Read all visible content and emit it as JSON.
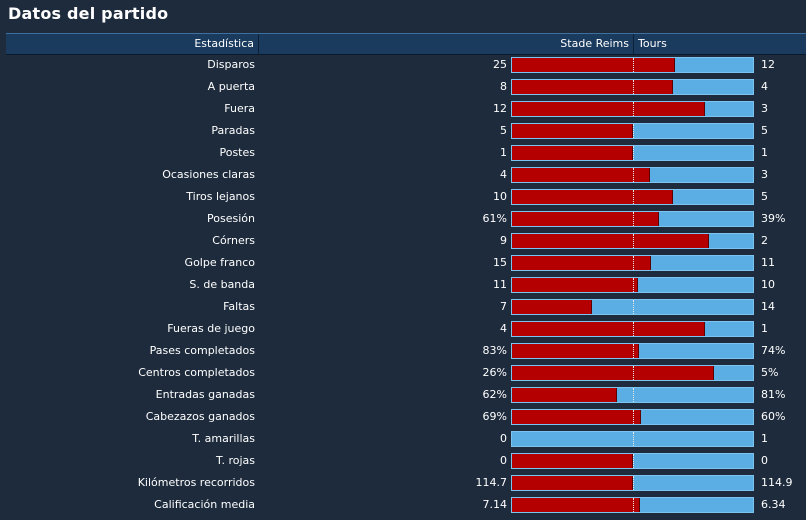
{
  "title": "Datos del partido",
  "header": {
    "stat": "Estadística",
    "home": "Stade Reims",
    "away": "Tours"
  },
  "colors": {
    "home": "#b40000",
    "away": "#5aaee3",
    "background": "#1d2b3c",
    "header": "#1a3a5e"
  },
  "stats": [
    {
      "label": "Disparos",
      "home": "25",
      "away": "12",
      "home_share": 0.675
    },
    {
      "label": "A puerta",
      "home": "8",
      "away": "4",
      "home_share": 0.667
    },
    {
      "label": "Fuera",
      "home": "12",
      "away": "3",
      "home_share": 0.8
    },
    {
      "label": "Paradas",
      "home": "5",
      "away": "5",
      "home_share": 0.5
    },
    {
      "label": "Postes",
      "home": "1",
      "away": "1",
      "home_share": 0.5
    },
    {
      "label": "Ocasiones claras",
      "home": "4",
      "away": "3",
      "home_share": 0.571
    },
    {
      "label": "Tiros lejanos",
      "home": "10",
      "away": "5",
      "home_share": 0.667
    },
    {
      "label": "Posesión",
      "home": "61%",
      "away": "39%",
      "home_share": 0.61
    },
    {
      "label": "Córners",
      "home": "9",
      "away": "2",
      "home_share": 0.818
    },
    {
      "label": "Golpe franco",
      "home": "15",
      "away": "11",
      "home_share": 0.577
    },
    {
      "label": "S. de banda",
      "home": "11",
      "away": "10",
      "home_share": 0.524
    },
    {
      "label": "Faltas",
      "home": "7",
      "away": "14",
      "home_share": 0.333
    },
    {
      "label": "Fueras de juego",
      "home": "4",
      "away": "1",
      "home_share": 0.8
    },
    {
      "label": "Pases completados",
      "home": "83%",
      "away": "74%",
      "home_share": 0.529
    },
    {
      "label": "Centros completados",
      "home": "26%",
      "away": "5%",
      "home_share": 0.839
    },
    {
      "label": "Entradas ganadas",
      "home": "62%",
      "away": "81%",
      "home_share": 0.434
    },
    {
      "label": "Cabezazos ganados",
      "home": "69%",
      "away": "60%",
      "home_share": 0.535
    },
    {
      "label": "T. amarillas",
      "home": "0",
      "away": "1",
      "home_share": 0.0
    },
    {
      "label": "T. rojas",
      "home": "0",
      "away": "0",
      "home_share": 0.5
    },
    {
      "label": "Kilómetros recorridos",
      "home": "114.7",
      "away": "114.9",
      "home_share": 0.5
    },
    {
      "label": "Calificación media",
      "home": "7.14",
      "away": "6.34",
      "home_share": 0.53
    }
  ]
}
